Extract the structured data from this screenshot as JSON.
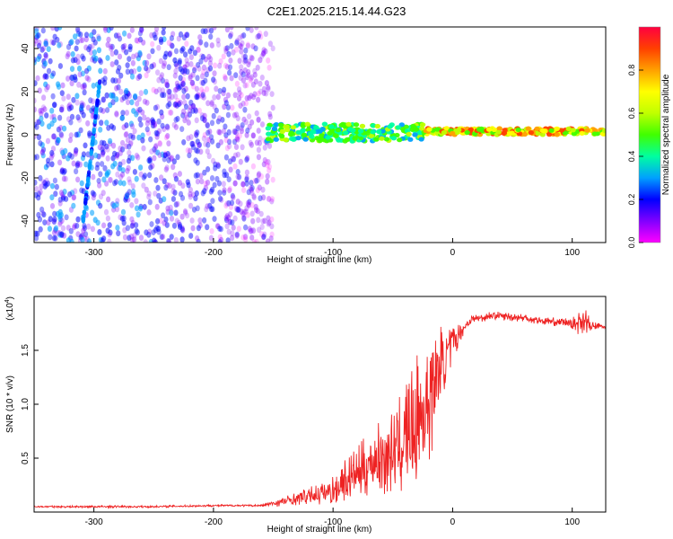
{
  "figure_title": "C2E1.2025.215.14.44.G23",
  "chart_data": [
    {
      "type": "heatmap",
      "title": "",
      "xlabel": "Height of straight line (km)",
      "ylabel": "Frequency (Hz)",
      "xlim": [
        -350,
        128
      ],
      "ylim": [
        -50,
        50
      ],
      "xticks": [
        -300,
        -200,
        -100,
        0,
        100
      ],
      "yticks": [
        -40,
        -20,
        0,
        20,
        40
      ],
      "colorbar": {
        "label": "Normalized spectral amplitude",
        "range": [
          0.0,
          1.0
        ],
        "ticks": [
          "0.0",
          "0.2",
          "0.4",
          "0.6",
          "0.8"
        ],
        "colormap": [
          "#ff00ff",
          "#8000ff",
          "#0000ff",
          "#00a0ff",
          "#00ffa0",
          "#40ff00",
          "#c0ff00",
          "#ffff00",
          "#ffa000",
          "#ff4000",
          "#ff0040"
        ]
      },
      "regions": [
        {
          "name": "diffuse scatter",
          "x": [
            -350,
            -150
          ],
          "y": [
            -50,
            50
          ],
          "amplitude": [
            0.05,
            0.3
          ]
        },
        {
          "name": "narrow band",
          "x": [
            -155,
            -25
          ],
          "y_center": 1,
          "y_halfwidth": 4,
          "amplitude": [
            0.3,
            0.6
          ]
        },
        {
          "name": "narrow band",
          "x": [
            -25,
            128
          ],
          "y_center": 1.5,
          "y_halfwidth": 1.5,
          "amplitude": [
            0.5,
            0.95
          ]
        },
        {
          "name": "vertical streak",
          "x": [
            -310,
            -295
          ],
          "y": [
            -45,
            25
          ],
          "amplitude": [
            0.2,
            0.35
          ]
        }
      ]
    },
    {
      "type": "line",
      "title": "",
      "xlabel": "Height of straight line (km)",
      "ylabel": "SNR (10 * v/v)",
      "yscale_label": "(x10",
      "yscale_exponent": "4",
      "xlim": [
        -350,
        128
      ],
      "ylim": [
        0,
        2.0
      ],
      "xticks": [
        -300,
        -200,
        -100,
        0,
        100
      ],
      "yticks": [
        0.5,
        1.0,
        1.5
      ],
      "series": [
        {
          "color": "#ee2222",
          "x": [
            -350,
            -300,
            -250,
            -200,
            -160,
            -140,
            -120,
            -100,
            -90,
            -80,
            -70,
            -60,
            -50,
            -45,
            -40,
            -35,
            -30,
            -25,
            -20,
            -15,
            -10,
            -5,
            0,
            5,
            10,
            15,
            20,
            25,
            30,
            40,
            50,
            60,
            70,
            80,
            90,
            100,
            105,
            110,
            115,
            120,
            128
          ],
          "y": [
            0.05,
            0.05,
            0.05,
            0.06,
            0.06,
            0.1,
            0.15,
            0.2,
            0.3,
            0.35,
            0.45,
            0.5,
            0.55,
            0.6,
            0.7,
            0.75,
            0.8,
            0.9,
            1.1,
            1.2,
            1.35,
            1.45,
            1.55,
            1.65,
            1.72,
            1.78,
            1.8,
            1.8,
            1.82,
            1.82,
            1.81,
            1.8,
            1.78,
            1.77,
            1.76,
            1.75,
            1.75,
            1.8,
            1.72,
            1.72,
            1.72
          ],
          "noise_amplitude": [
            0.01,
            0.01,
            0.01,
            0.01,
            0.01,
            0.05,
            0.08,
            0.15,
            0.2,
            0.25,
            0.3,
            0.35,
            0.4,
            0.45,
            0.55,
            0.6,
            0.65,
            0.7,
            0.7,
            0.5,
            0.4,
            0.3,
            0.2,
            0.1,
            0.06,
            0.05,
            0.04,
            0.04,
            0.04,
            0.04,
            0.04,
            0.04,
            0.04,
            0.04,
            0.04,
            0.05,
            0.1,
            0.15,
            0.06,
            0.04,
            0.03
          ]
        }
      ]
    }
  ]
}
